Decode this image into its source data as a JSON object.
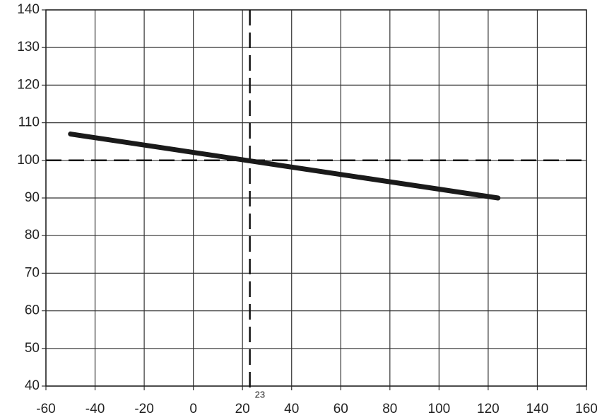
{
  "chart_data": {
    "type": "line",
    "x": [
      -50,
      124
    ],
    "series": [
      {
        "color": "#1a1a1a",
        "values": [
          107,
          90
        ]
      }
    ],
    "xlim": [
      -60,
      160
    ],
    "ylim": [
      40,
      140
    ],
    "xticks": [
      -60,
      -40,
      -20,
      0,
      20,
      40,
      60,
      80,
      100,
      120,
      140,
      160
    ],
    "yticks": [
      40,
      50,
      60,
      70,
      80,
      90,
      100,
      110,
      120,
      130,
      140
    ],
    "grid": true,
    "hlines": [
      100
    ],
    "vlines": [
      {
        "value": 23,
        "label": "23"
      }
    ]
  }
}
